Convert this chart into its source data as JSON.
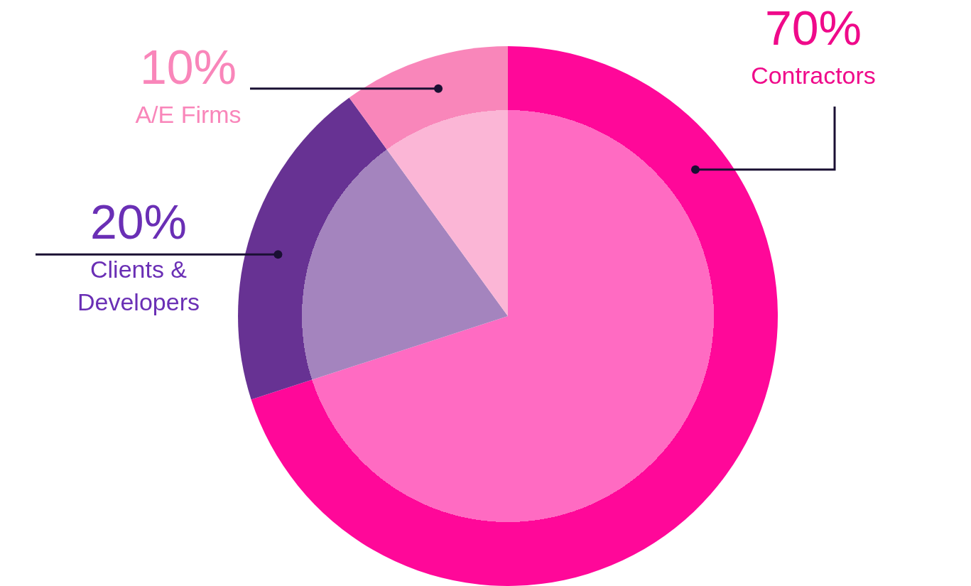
{
  "chart_data": {
    "type": "pie",
    "categories": [
      "Contractors",
      "Clients & Developers",
      "A/E Firms"
    ],
    "values": [
      70,
      20,
      10
    ],
    "value_labels": [
      "70%",
      "20%",
      "10%"
    ],
    "colors": [
      "#ff0899",
      "#673293",
      "#f986ba"
    ]
  }
}
